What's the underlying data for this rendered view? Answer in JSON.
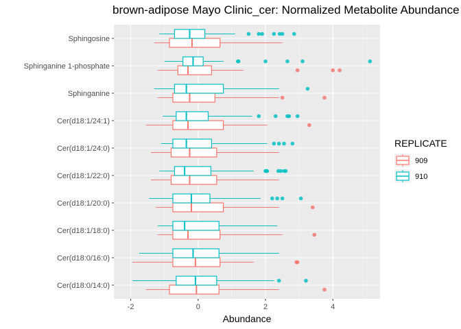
{
  "chart_data": {
    "type": "boxplot",
    "title": "brown-adipose Mayo Clinic_cer: Normalized Metabolite Abundance",
    "xlabel": "Abundance",
    "ylabel": "",
    "xlim": [
      -2.5,
      5.4
    ],
    "x_ticks": [
      -2,
      0,
      2,
      4
    ],
    "grid": true,
    "orientation": "horizontal",
    "legend": {
      "title": "REPLICATE",
      "position": "right",
      "entries": [
        {
          "name": "909",
          "color": "#F8766D"
        },
        {
          "name": "910",
          "color": "#00BFC4"
        }
      ]
    },
    "categories": [
      "Sphingosine",
      "Sphinganine 1-phosphate",
      "Sphinganine",
      "Cer(d18:1/24:1)",
      "Cer(d18:1/24:0)",
      "Cer(d18:1/22:0)",
      "Cer(d18:1/20:0)",
      "Cer(d18:1/18:0)",
      "Cer(d18:0/16:0)",
      "Cer(d18:0/14:0)"
    ],
    "series": [
      {
        "name": "909",
        "color": "#F8766D",
        "boxes": [
          {
            "min": -1.3,
            "q1": -0.85,
            "median": -0.18,
            "q3": 0.65,
            "max": 2.5,
            "outliers": []
          },
          {
            "min": -1.2,
            "q1": -0.6,
            "median": -0.3,
            "q3": 0.4,
            "max": 1.35,
            "outliers": [
              2.95,
              4.0,
              4.2
            ]
          },
          {
            "min": -1.2,
            "q1": -0.75,
            "median": -0.25,
            "q3": 0.5,
            "max": 2.4,
            "outliers": [
              2.5,
              3.75
            ]
          },
          {
            "min": -1.55,
            "q1": -0.75,
            "median": -0.3,
            "q3": 0.75,
            "max": 2.05,
            "outliers": [
              3.3
            ]
          },
          {
            "min": -1.4,
            "q1": -0.8,
            "median": -0.25,
            "q3": 0.55,
            "max": 2.4,
            "outliers": []
          },
          {
            "min": -1.4,
            "q1": -0.8,
            "median": -0.25,
            "q3": 0.55,
            "max": 2.4,
            "outliers": []
          },
          {
            "min": -1.25,
            "q1": -0.75,
            "median": -0.2,
            "q3": 0.75,
            "max": 2.4,
            "outliers": [
              3.4
            ]
          },
          {
            "min": -1.2,
            "q1": -0.75,
            "median": -0.3,
            "q3": 0.65,
            "max": 2.5,
            "outliers": [
              3.45
            ]
          },
          {
            "min": -1.95,
            "q1": -0.75,
            "median": -0.08,
            "q3": 0.65,
            "max": 1.65,
            "outliers": [
              2.95,
              2.92
            ]
          },
          {
            "min": -1.55,
            "q1": -0.85,
            "median": -0.05,
            "q3": 0.62,
            "max": 2.4,
            "outliers": [
              3.75
            ]
          }
        ]
      },
      {
        "name": "910",
        "color": "#00BFC4",
        "boxes": [
          {
            "min": -1.15,
            "q1": -0.7,
            "median": -0.25,
            "q3": 0.2,
            "max": 1.1,
            "outliers": [
              1.5,
              1.8,
              1.9,
              2.25,
              2.42,
              2.5,
              2.85
            ]
          },
          {
            "min": -1.0,
            "q1": -0.45,
            "median": -0.15,
            "q3": 0.15,
            "max": 0.75,
            "outliers": [
              1.2,
              1.18,
              2.0,
              2.65,
              3.1,
              5.1
            ]
          },
          {
            "min": -1.3,
            "q1": -0.7,
            "median": -0.35,
            "q3": 0.75,
            "max": 2.4,
            "outliers": [
              3.25
            ]
          },
          {
            "min": -1.05,
            "q1": -0.65,
            "median": -0.35,
            "q3": 0.3,
            "max": 1.6,
            "outliers": [
              1.8,
              2.3,
              2.65,
              2.7,
              2.95
            ]
          },
          {
            "min": -1.1,
            "q1": -0.75,
            "median": -0.35,
            "q3": 0.4,
            "max": 2.05,
            "outliers": [
              2.25,
              2.4,
              2.55,
              2.8
            ]
          },
          {
            "min": -1.15,
            "q1": -0.7,
            "median": -0.4,
            "q3": 0.38,
            "max": 1.65,
            "outliers": [
              2.0,
              2.02,
              2.05,
              2.38,
              2.45,
              2.55,
              2.6
            ]
          },
          {
            "min": -1.45,
            "q1": -0.75,
            "median": -0.2,
            "q3": 0.35,
            "max": 1.85,
            "outliers": [
              2.2,
              2.35,
              2.5,
              3.05
            ]
          },
          {
            "min": -1.2,
            "q1": -0.75,
            "median": -0.4,
            "q3": 0.62,
            "max": 2.35,
            "outliers": []
          },
          {
            "min": -1.75,
            "q1": -0.75,
            "median": -0.15,
            "q3": 0.62,
            "max": 2.4,
            "outliers": []
          },
          {
            "min": -1.95,
            "q1": -0.65,
            "median": -0.08,
            "q3": 0.55,
            "max": 2.25,
            "outliers": [
              2.4,
              3.2
            ]
          }
        ]
      }
    ]
  }
}
